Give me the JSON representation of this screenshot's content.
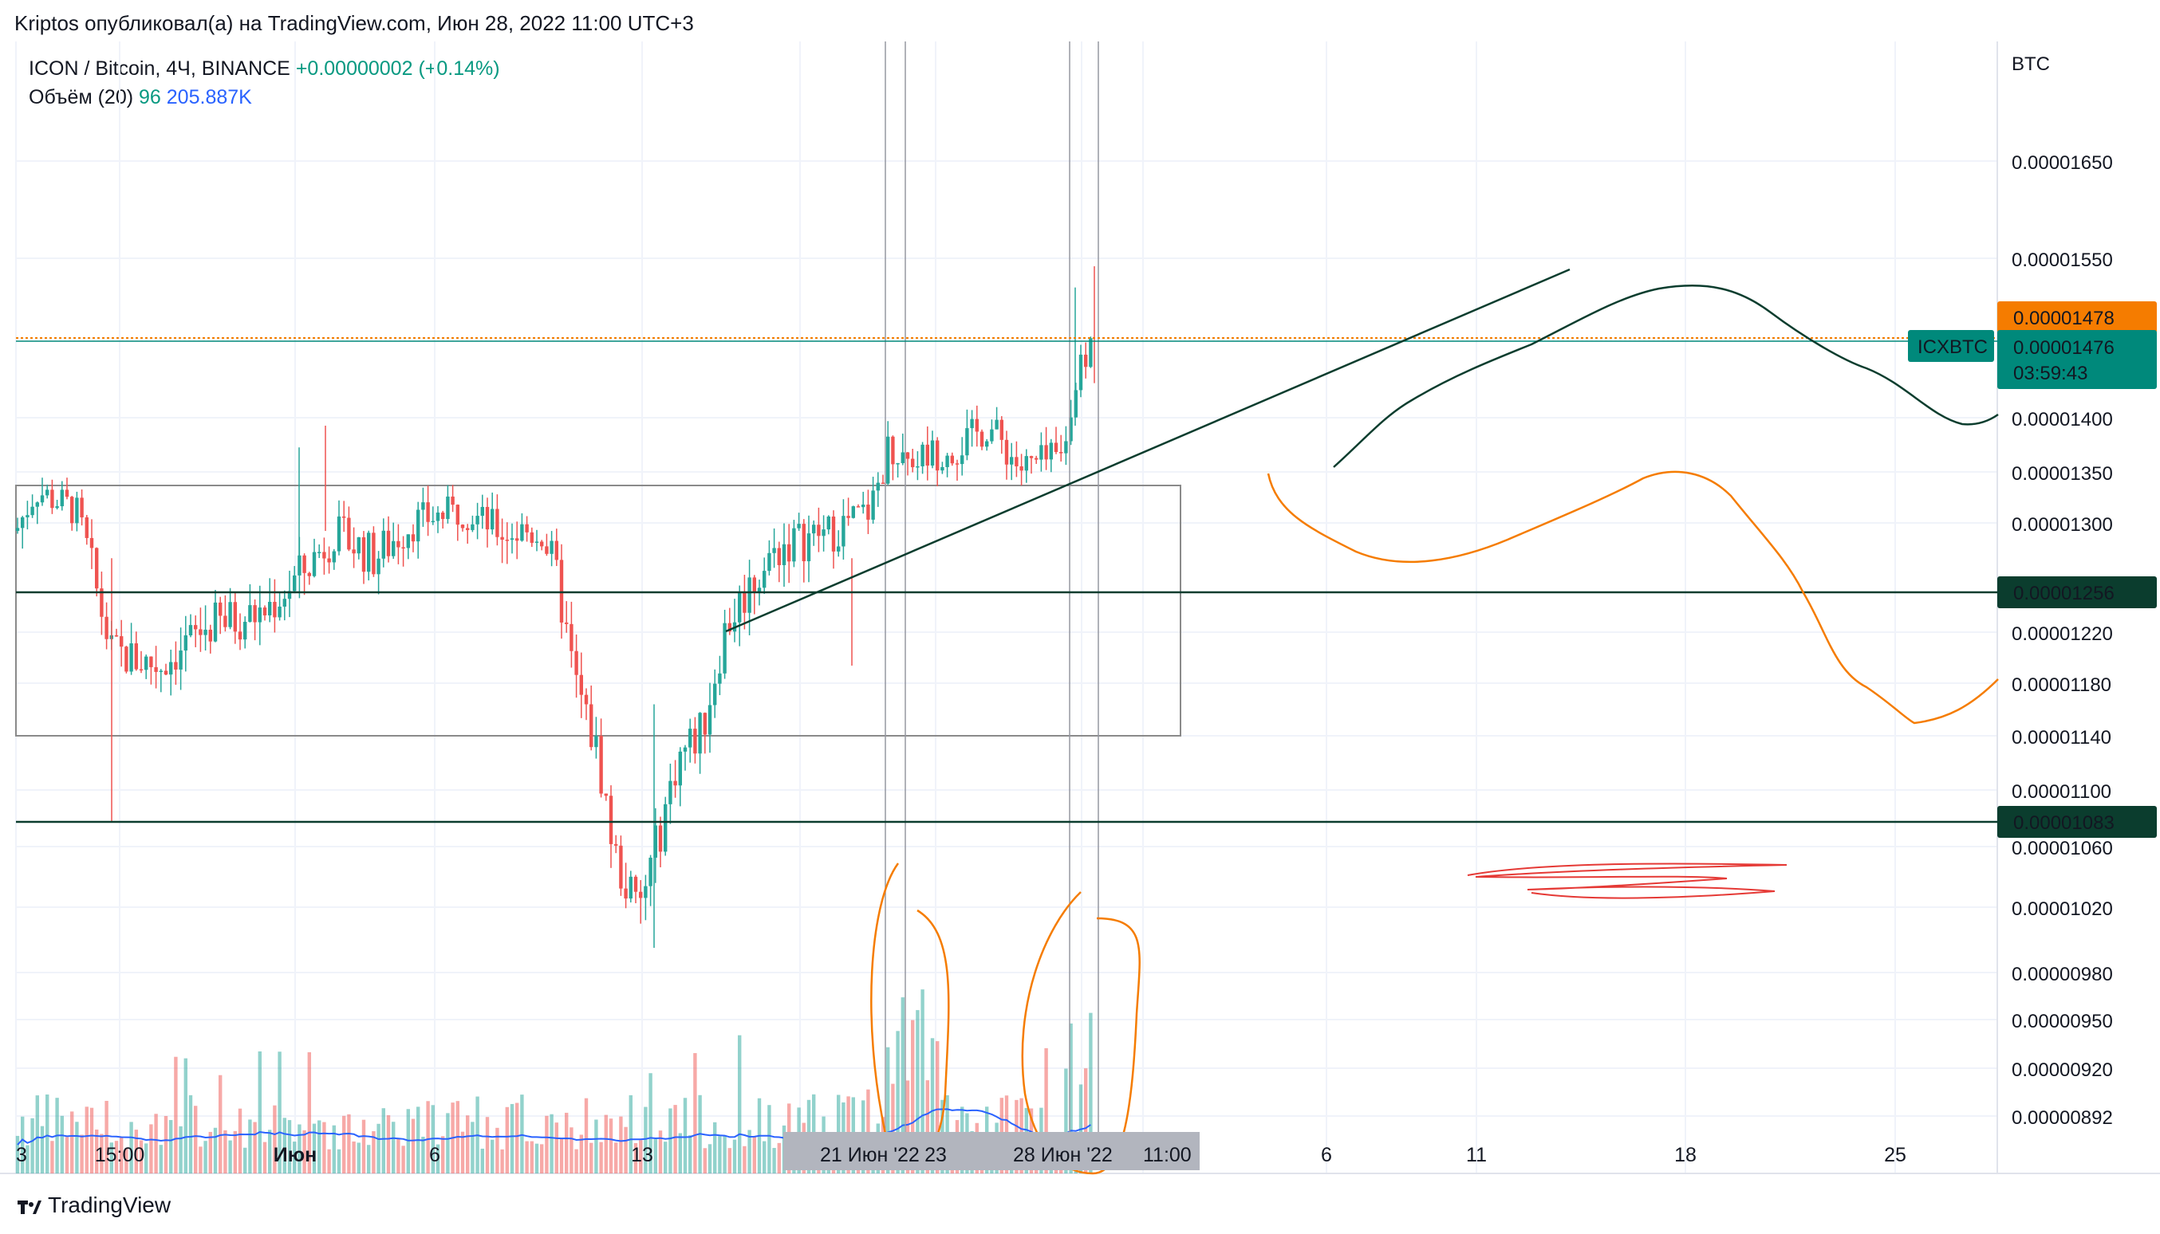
{
  "header": {
    "publisher_line": "Kriptos опубликовал(а) на TradingView.com, Июн 28, 2022 11:00 UTC+3"
  },
  "legend": {
    "symbol": "ICON / Bitcoin, 4Ч, BINANCE",
    "change": "+0.00000002 (+0.14%)",
    "volume_label": "Объём (20)",
    "volume_value": "96",
    "volume_ma": "205.887K"
  },
  "colors": {
    "up": "#26a69a",
    "down": "#ef5350",
    "volume_ma": "#2962ff",
    "accent_orange": "#f57c00",
    "dark_green": "#0b3d2e",
    "price_badge": "#00897b"
  },
  "chart_data": {
    "type": "candlestick",
    "symbol": "ICXBTC",
    "currency": "BTC",
    "ylim": [
      8.7e-06,
      1.76e-05
    ],
    "price_ticks": [
      "0.00000892",
      "0.00000920",
      "0.00000950",
      "0.00000980",
      "0.00001020",
      "0.00001060",
      "0.00001100",
      "0.00001140",
      "0.00001180",
      "0.00001220",
      "0.00001300",
      "0.00001350",
      "0.00001400",
      "0.00001550",
      "0.00001650"
    ],
    "time_ticks": [
      "3",
      "15:00",
      "Июн",
      "6",
      "13",
      "21 Июн '22",
      "23",
      "28 Июн '22",
      "11:00",
      "6",
      "11",
      "18",
      "25"
    ],
    "highlighted_time_labels": [
      "21 Июн '22",
      "28 Июн '22",
      "11:00"
    ],
    "price_labels": [
      {
        "label": "0.00001478",
        "kind": "orange-line"
      },
      {
        "label": "0.00001476",
        "symbol": "ICXBTC",
        "countdown": "03:59:43",
        "kind": "last-price"
      },
      {
        "label": "0.00001256",
        "kind": "horizontal-line"
      },
      {
        "label": "0.00001083",
        "kind": "horizontal-line"
      }
    ],
    "key_levels": [
      1.256e-05,
      1.083e-05
    ],
    "last_price": 1.476e-05,
    "legend_volume": "205.887K"
  }
}
